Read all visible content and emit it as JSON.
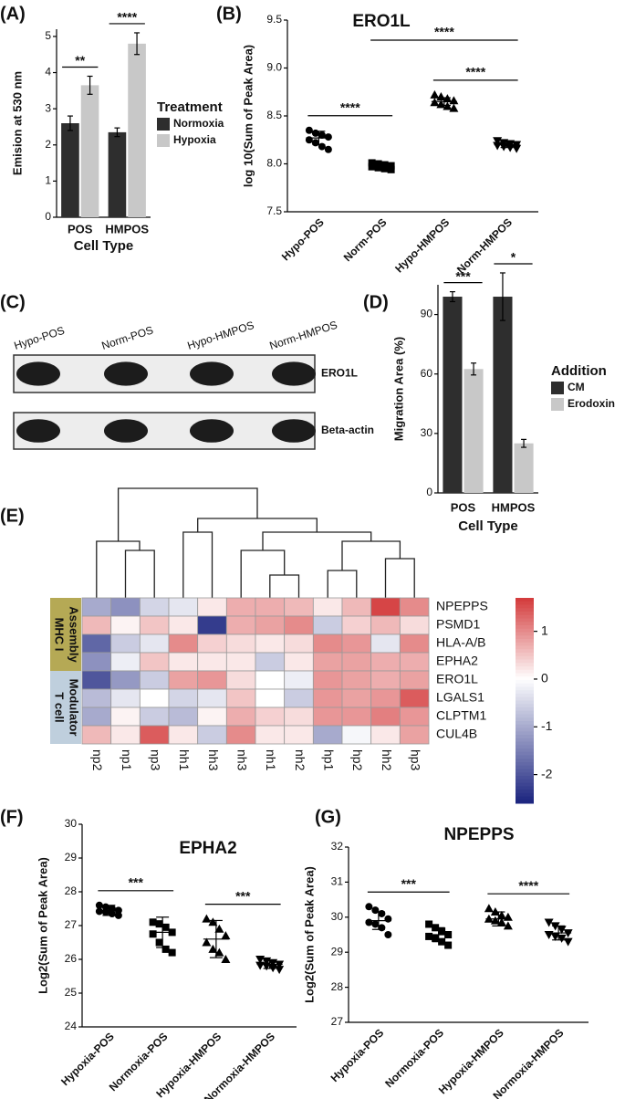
{
  "chart_data": [
    {
      "type": "bar",
      "label": "(A)",
      "ylabel": "Emision at 530 nm",
      "xlabel": "Cell Type",
      "categories": [
        "POS",
        "HMPOS"
      ],
      "legend_title": "Treatment",
      "series": [
        {
          "name": "Normoxia",
          "color": "#2e2e2e",
          "values": [
            2.6,
            2.35
          ],
          "errors": [
            0.2,
            0.12
          ]
        },
        {
          "name": "Hypoxia",
          "color": "#c8c8c8",
          "values": [
            3.65,
            4.8
          ],
          "errors": [
            0.25,
            0.3
          ]
        }
      ],
      "ylim": [
        0,
        5.2
      ],
      "yticks": [
        0,
        1,
        2,
        3,
        4,
        5
      ],
      "annotations": [
        {
          "text": "**",
          "category": 0
        },
        {
          "text": "****",
          "category": 1
        }
      ]
    },
    {
      "type": "dot",
      "label": "(B)",
      "title": "ERO1L",
      "ylabel": "log 10(Sum of  Peak Area)",
      "categories": [
        "Hypo-POS",
        "Norm-POS",
        "Hypo-HMPOS",
        "Norm-HMPOS"
      ],
      "markers": [
        "circle",
        "square",
        "triangle",
        "triangle-down"
      ],
      "values": [
        8.27,
        7.98,
        8.65,
        8.2
      ],
      "errors": [
        0.07,
        0.03,
        0.04,
        0.03
      ],
      "points": [
        [
          8.35,
          8.32,
          8.3,
          8.28,
          8.25,
          8.22,
          8.18,
          8.15
        ],
        [
          8.01,
          8.0,
          7.99,
          7.98,
          7.97,
          7.96,
          7.95,
          7.94
        ],
        [
          8.72,
          8.7,
          8.68,
          8.66,
          8.64,
          8.62,
          8.6,
          8.58
        ],
        [
          8.24,
          8.22,
          8.21,
          8.2,
          8.19,
          8.18,
          8.17,
          8.16
        ]
      ],
      "ylim": [
        7.5,
        9.5
      ],
      "yticks": [
        7.5,
        {
          "value": 8,
          "label": "8.0"
        },
        8.5,
        {
          "value": 9,
          "label": "9.0"
        },
        9.5
      ],
      "annotations": [
        {
          "text": "****",
          "between": [
            0,
            1
          ]
        },
        {
          "text": "****",
          "between": [
            1,
            3
          ]
        },
        {
          "text": "****",
          "between": [
            2,
            3
          ]
        }
      ]
    },
    {
      "type": "blot",
      "label": "(C)",
      "lanes": [
        "Hypo-POS",
        "Norm-POS",
        "Hypo-HMPOS",
        "Norm-HMPOS"
      ],
      "rows": [
        "ERO1L",
        "Beta-actin"
      ]
    },
    {
      "type": "bar",
      "label": "(D)",
      "ylabel": "Migration Area (%)",
      "xlabel": "Cell Type",
      "categories": [
        "POS",
        "HMPOS"
      ],
      "legend_title": "Addition",
      "series": [
        {
          "name": "CM",
          "color": "#2e2e2e",
          "values": [
            99,
            99
          ],
          "errors": [
            2.5,
            12
          ]
        },
        {
          "name": "Erodoxin",
          "color": "#c8c8c8",
          "values": [
            62.5,
            25
          ],
          "errors": [
            3,
            2
          ]
        }
      ],
      "ylim": [
        0,
        105
      ],
      "yticks": [
        0,
        30,
        60,
        90
      ],
      "annotations": [
        {
          "text": "***",
          "category": 0
        },
        {
          "text": "*",
          "category": 1
        }
      ]
    },
    {
      "type": "heatmap",
      "label": "(E)",
      "rows": [
        "NPEPPS",
        "PSMD1",
        "HLA-A/B",
        "EPHA2",
        "ERO1L",
        "LGALS1",
        "CLPTM1",
        "CUL4B"
      ],
      "columns": [
        "np2",
        "np1",
        "np3",
        "hh1",
        "hh3",
        "nh3",
        "nh1",
        "nh2",
        "hp1",
        "hp2",
        "hh2",
        "hp3"
      ],
      "values": [
        [
          -1.0,
          -1.3,
          -0.5,
          -0.3,
          0.2,
          0.7,
          0.7,
          0.6,
          0.2,
          0.6,
          1.6,
          1.0
        ],
        [
          0.6,
          0.1,
          0.5,
          0.2,
          -2.3,
          0.7,
          0.8,
          1.0,
          -0.6,
          0.4,
          0.6,
          0.3
        ],
        [
          -1.8,
          -0.6,
          -0.3,
          1.0,
          0.4,
          0.3,
          0.2,
          0.3,
          1.0,
          0.9,
          -0.3,
          1.0
        ],
        [
          -1.3,
          -0.2,
          0.5,
          0.2,
          0.2,
          0.2,
          -0.6,
          0.2,
          0.8,
          0.8,
          0.7,
          0.7
        ],
        [
          -2.0,
          -1.2,
          -0.6,
          0.8,
          0.9,
          0.3,
          0.0,
          -0.2,
          0.9,
          0.8,
          0.7,
          0.8
        ],
        [
          -0.8,
          -0.3,
          0.0,
          -0.5,
          -0.3,
          0.5,
          0.0,
          -0.6,
          0.9,
          0.8,
          0.9,
          1.4
        ],
        [
          -1.0,
          0.1,
          -0.6,
          -0.8,
          0.1,
          0.7,
          0.4,
          0.3,
          0.9,
          0.9,
          1.1,
          0.9
        ],
        [
          0.6,
          0.2,
          1.4,
          0.2,
          -0.6,
          1.0,
          0.2,
          0.2,
          -1.0,
          -0.1,
          0.2,
          0.8
        ]
      ],
      "clim": [
        -2.6,
        1.7
      ],
      "colorbar_ticks": [
        1,
        0,
        -1,
        -2
      ],
      "colors": [
        "#1a237e",
        "#ffffff",
        "#d3393a"
      ],
      "groups": [
        {
          "label": [
            "MHC I",
            "Assembly"
          ],
          "rows": [
            0,
            3
          ],
          "color": "#b5a955"
        },
        {
          "label": [
            "T cell",
            "Modulator"
          ],
          "rows": [
            4,
            7
          ],
          "color": "#bfcfdd"
        }
      ]
    },
    {
      "type": "dot",
      "label": "(F)",
      "title": "EPHA2",
      "ylabel": "Log2(Sum of Peak Area)",
      "categories": [
        "Hypoxia-POS",
        "Normoxia-POS",
        "Hypoxia-HMPOS",
        "Normoxia-HMPOS"
      ],
      "markers": [
        "circle",
        "square",
        "triangle",
        "triangle-down"
      ],
      "values": [
        27.45,
        26.8,
        26.6,
        25.85
      ],
      "errors": [
        0.15,
        0.45,
        0.55,
        0.12
      ],
      "points": [
        [
          27.6,
          27.55,
          27.5,
          27.45,
          27.42,
          27.4,
          27.35,
          27.3
        ],
        [
          27.1,
          27.05,
          26.95,
          26.8,
          26.75,
          26.5,
          26.3,
          26.2
        ],
        [
          27.2,
          27.1,
          26.9,
          26.7,
          26.5,
          26.3,
          26.2,
          26.0
        ],
        [
          26.0,
          25.95,
          25.9,
          25.85,
          25.82,
          25.8,
          25.75,
          25.7
        ]
      ],
      "ylim": [
        24,
        30
      ],
      "yticks": [
        24,
        25,
        26,
        27,
        28,
        29,
        30
      ],
      "annotations": [
        {
          "text": "***",
          "between": [
            0,
            1
          ]
        },
        {
          "text": "***",
          "between": [
            2,
            3
          ]
        }
      ]
    },
    {
      "type": "dot",
      "label": "(G)",
      "title": "NPEPPS",
      "ylabel": "Log2(Sum of Peak Area)",
      "categories": [
        "Hypoxia-POS",
        "Normoxia-POS",
        "Hypoxia-HMPOS",
        "Normoxia-HMPOS"
      ],
      "markers": [
        "circle",
        "square",
        "triangle",
        "triangle-down"
      ],
      "values": [
        29.9,
        29.5,
        29.95,
        29.55
      ],
      "errors": [
        0.25,
        0.2,
        0.2,
        0.2
      ],
      "points": [
        [
          30.3,
          30.2,
          30.1,
          29.95,
          29.85,
          29.8,
          29.7,
          29.5
        ],
        [
          29.8,
          29.7,
          29.6,
          29.5,
          29.45,
          29.4,
          29.3,
          29.2
        ],
        [
          30.25,
          30.15,
          30.05,
          30.0,
          29.95,
          29.9,
          29.85,
          29.75
        ],
        [
          29.85,
          29.75,
          29.65,
          29.55,
          29.5,
          29.45,
          29.4,
          29.3
        ]
      ],
      "ylim": [
        27,
        32
      ],
      "yticks": [
        27,
        28,
        29,
        30,
        31,
        32
      ],
      "annotations": [
        {
          "text": "***",
          "between": [
            0,
            1
          ]
        },
        {
          "text": "****",
          "between": [
            2,
            3
          ]
        }
      ]
    }
  ]
}
